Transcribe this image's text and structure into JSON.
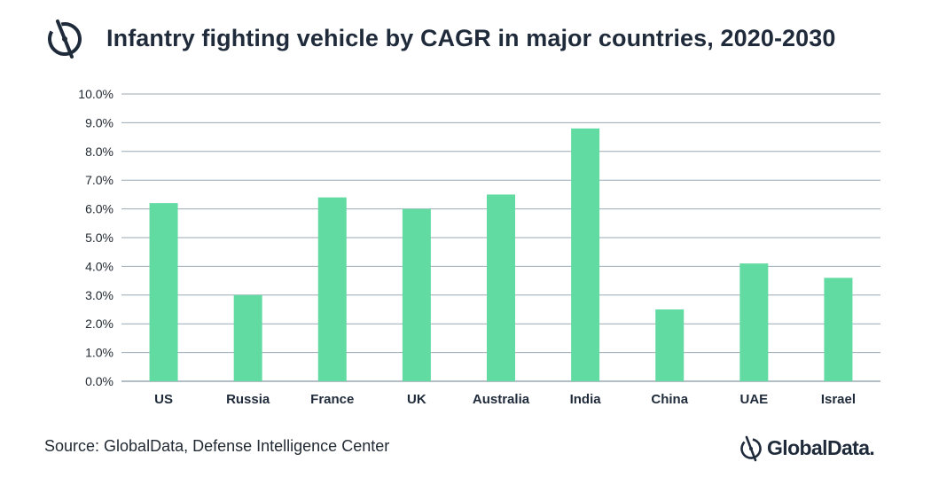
{
  "header": {
    "title": "Infantry fighting vehicle by CAGR in major countries, 2020-2030",
    "logo_icon": "globaldata-logo-icon"
  },
  "chart_data": {
    "type": "bar",
    "title": "Infantry fighting vehicle by CAGR in major countries, 2020-2030",
    "xlabel": "",
    "ylabel": "",
    "categories": [
      "US",
      "Russia",
      "France",
      "UK",
      "Australia",
      "India",
      "China",
      "UAE",
      "Israel"
    ],
    "values": [
      6.2,
      3.0,
      6.4,
      6.0,
      6.5,
      8.8,
      2.5,
      4.1,
      3.6
    ],
    "ylim": [
      0,
      10
    ],
    "yticks": [
      "0.0%",
      "1.0%",
      "2.0%",
      "3.0%",
      "4.0%",
      "5.0%",
      "6.0%",
      "7.0%",
      "8.0%",
      "9.0%",
      "10.0%"
    ],
    "grid": true,
    "bar_color": "#62dba3",
    "grid_color": "#9aaab4"
  },
  "footer": {
    "source": "Source: GlobalData, Defense Intelligence Center",
    "brand": "GlobalData."
  },
  "colors": {
    "title": "#1f2a3a",
    "bar": "#62dba3"
  }
}
